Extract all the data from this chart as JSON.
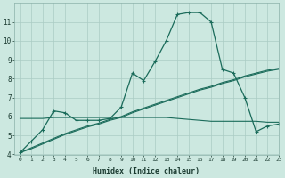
{
  "title": "",
  "xlabel": "Humidex (Indice chaleur)",
  "background_color": "#cce8e0",
  "grid_color": "#aaccC4",
  "line_color": "#1a6b5a",
  "x_values": [
    0,
    1,
    2,
    3,
    4,
    5,
    6,
    7,
    8,
    9,
    10,
    11,
    12,
    13,
    14,
    15,
    16,
    17,
    18,
    19,
    20,
    21,
    22,
    23
  ],
  "line1_y": [
    4.1,
    4.7,
    5.3,
    6.3,
    6.2,
    5.8,
    5.8,
    5.8,
    5.9,
    6.5,
    8.3,
    7.9,
    8.9,
    10.0,
    11.4,
    11.5,
    11.5,
    11.0,
    8.5,
    8.3,
    7.0,
    5.2,
    5.5,
    5.6
  ],
  "line2_y": [
    5.9,
    5.9,
    5.9,
    5.95,
    5.95,
    5.95,
    5.95,
    5.95,
    5.95,
    5.95,
    5.95,
    5.95,
    5.95,
    5.95,
    5.9,
    5.85,
    5.8,
    5.75,
    5.75,
    5.75,
    5.75,
    5.75,
    5.7,
    5.7
  ],
  "line3_y": [
    4.1,
    4.35,
    4.6,
    4.85,
    5.1,
    5.3,
    5.5,
    5.65,
    5.85,
    6.0,
    6.25,
    6.45,
    6.65,
    6.85,
    7.05,
    7.25,
    7.45,
    7.6,
    7.8,
    7.95,
    8.15,
    8.3,
    8.45,
    8.55
  ],
  "line4_y": [
    4.1,
    4.3,
    4.55,
    4.8,
    5.05,
    5.25,
    5.45,
    5.6,
    5.8,
    5.95,
    6.2,
    6.4,
    6.6,
    6.8,
    7.0,
    7.2,
    7.4,
    7.55,
    7.75,
    7.9,
    8.1,
    8.25,
    8.4,
    8.5
  ],
  "ylim": [
    4,
    12
  ],
  "xlim": [
    -0.5,
    23
  ],
  "yticks": [
    4,
    5,
    6,
    7,
    8,
    9,
    10,
    11
  ],
  "xticks": [
    0,
    1,
    2,
    3,
    4,
    5,
    6,
    7,
    8,
    9,
    10,
    11,
    12,
    13,
    14,
    15,
    16,
    17,
    18,
    19,
    20,
    21,
    22,
    23
  ]
}
